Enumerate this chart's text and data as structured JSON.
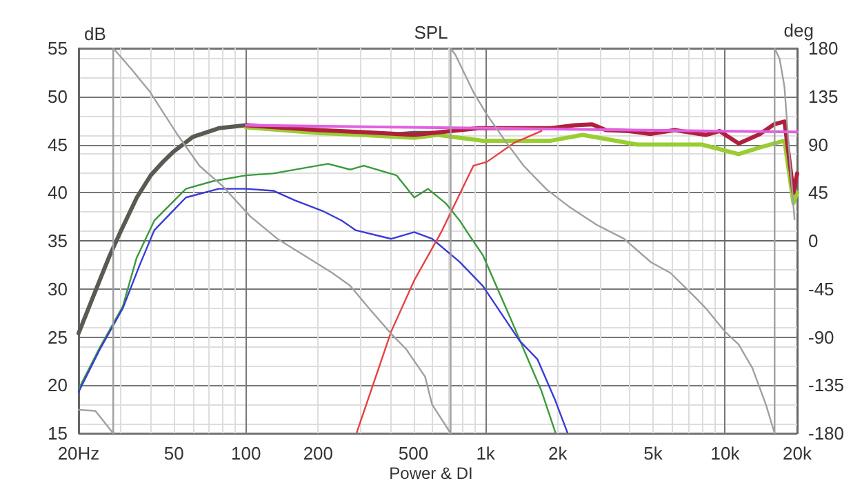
{
  "chart_data": {
    "type": "line",
    "title": "SPL",
    "ylabel": "dB",
    "y2label": "deg",
    "annotations": [
      "Power & DI"
    ],
    "log": "x",
    "grid": true,
    "marker": "none",
    "line_style": "solid",
    "xlim": [
      20,
      20000
    ],
    "xticks": [
      {
        "value": 20,
        "label": "20Hz"
      },
      50,
      100,
      200,
      500,
      {
        "value": 1000,
        "label": "1k"
      },
      {
        "value": 2000,
        "label": "2k"
      },
      {
        "value": 5000,
        "label": "5k"
      },
      {
        "value": 10000,
        "label": "10k"
      },
      {
        "value": 20000,
        "label": "20k"
      }
    ],
    "ylim": [
      15,
      55
    ],
    "yticks": [
      15,
      20,
      25,
      30,
      35,
      40,
      45,
      50,
      55
    ],
    "y2lim": [
      -180,
      180
    ],
    "y2ticks": [
      -180,
      -135,
      -90,
      -45,
      0,
      45,
      90,
      135,
      180
    ],
    "series": [
      {
        "color": "#5a5a52",
        "x": [
          20,
          24.5,
          27,
          30,
          35,
          40,
          45,
          50,
          60,
          77,
          100,
          150,
          200,
          300,
          400,
          500,
          600
        ],
        "values": [
          25.4,
          30.9,
          33.5,
          36,
          39.5,
          41.8,
          43.2,
          44.3,
          45.8,
          46.7,
          47,
          46.5,
          46.3,
          46.2,
          46,
          46.2,
          46.2
        ]
      },
      {
        "color": "#9acd32",
        "x": [
          100,
          200,
          300,
          504,
          630,
          975,
          1876,
          2540,
          4300,
          8000,
          11400,
          14000,
          17700,
          19300,
          20000
        ],
        "values": [
          46.8,
          46.2,
          46,
          45.7,
          46,
          45.4,
          45.4,
          46,
          45,
          45,
          44,
          44.7,
          45.4,
          38.9,
          40
        ]
      },
      {
        "color": "#b0203c",
        "x": [
          100,
          200,
          300,
          504,
          935,
          1389,
          1876,
          2357,
          2788,
          3178,
          3982,
          4902,
          6155,
          8310,
          9500,
          11400,
          14000,
          16000,
          17700,
          19300,
          20000
        ],
        "values": [
          47,
          46.5,
          46.3,
          46,
          46.7,
          46.7,
          46.7,
          47,
          47.1,
          46.5,
          46.4,
          46.1,
          46.5,
          46,
          46.4,
          45.1,
          46.1,
          47.1,
          47.4,
          40,
          42
        ]
      },
      {
        "color": "#e060e0",
        "x": [
          100,
          20000
        ],
        "values": [
          47,
          46.3
        ]
      },
      {
        "color": "#3a9a3a",
        "x": [
          20,
          24.5,
          30.6,
          34.9,
          41.4,
          56.1,
          72.9,
          100,
          130,
          220,
          272,
          310,
          425,
          504,
          575,
          682,
          780,
          854,
          975,
          1268,
          1444,
          1712,
          1956
        ],
        "values": [
          19.6,
          23.9,
          28.2,
          33.2,
          37.1,
          40.4,
          41.2,
          41.8,
          42,
          43,
          42.4,
          42.8,
          41.8,
          39.5,
          40.4,
          38.9,
          37.1,
          35.6,
          33.5,
          27,
          23.7,
          19.4,
          15.1
        ]
      },
      {
        "color": "#3a3ad8",
        "x": [
          20,
          24.5,
          30.6,
          36,
          41.4,
          56.1,
          76.9,
          100,
          130,
          160,
          209,
          251,
          287,
          404,
          504,
          599,
          780,
          975,
          1389,
          1646,
          1956,
          2195
        ],
        "values": [
          19.3,
          23.7,
          28,
          32.5,
          36.1,
          39.5,
          40.4,
          40.4,
          40.2,
          39.2,
          38.1,
          37.1,
          36.1,
          35.2,
          35.9,
          35.2,
          32.8,
          30.3,
          24.6,
          22.7,
          18.4,
          15.1
        ]
      },
      {
        "color": "#e84040",
        "x": [
          290,
          404,
          504,
          630,
          656,
          890,
          1013,
          1321,
          1712
        ],
        "values": [
          15.1,
          25.6,
          30.9,
          35.2,
          36,
          42.8,
          43.2,
          45.2,
          46.4
        ]
      },
      {
        "color": "#a0a0a0",
        "axis": "y2",
        "x": [
          20,
          23.5,
          27.9,
          27.9,
          33.1,
          39.8,
          51.8,
          64,
          80,
          104,
          135,
          176,
          229,
          272,
          326,
          404,
          465,
          559,
          598,
          715,
          715,
          748,
          890,
          1013,
          1220,
          1444,
          1800,
          2230,
          2908,
          3780,
          4902,
          5910,
          7000,
          8310,
          10000,
          11400,
          13000,
          14800,
          16100,
          16100,
          16900,
          17700,
          18400,
          19300,
          19500
        ],
        "values": [
          -158,
          -159,
          -180,
          180,
          161,
          139,
          99,
          70,
          51,
          23,
          2,
          -14,
          -30,
          -42,
          -63,
          -87,
          -101,
          -127,
          -153,
          -180,
          180,
          174,
          139,
          118,
          92,
          70,
          48,
          32,
          15,
          2,
          -20,
          -30,
          -46,
          -63,
          -85,
          -97,
          -119,
          -153,
          -180,
          180,
          170,
          144,
          92,
          32,
          20
        ]
      }
    ]
  }
}
